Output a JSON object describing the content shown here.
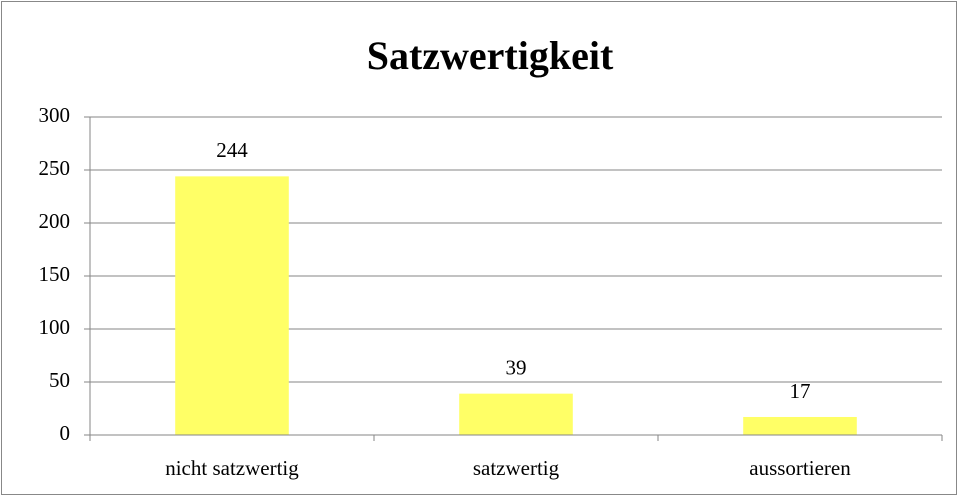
{
  "chart_data": {
    "type": "bar",
    "title": "Satzwertigkeit",
    "categories": [
      "nicht satzwertig",
      "satzwertig",
      "aussortieren"
    ],
    "values": [
      244,
      39,
      17
    ],
    "color": "#ffff66",
    "ylim": [
      0,
      300
    ],
    "yticks": [
      0,
      50,
      100,
      150,
      200,
      250,
      300
    ],
    "grid": true
  }
}
